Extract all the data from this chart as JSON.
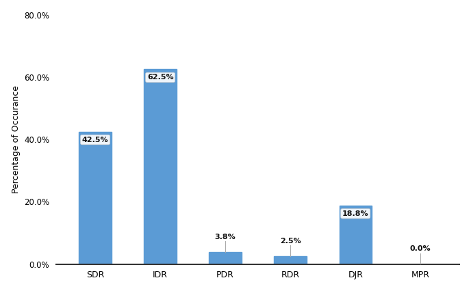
{
  "categories": [
    "SDR",
    "IDR",
    "PDR",
    "RDR",
    "DJR",
    "MPR"
  ],
  "values": [
    42.5,
    62.5,
    3.8,
    2.5,
    18.8,
    0.0
  ],
  "labels": [
    "42.5%",
    "62.5%",
    "3.8%",
    "2.5%",
    "18.8%",
    "0.0%"
  ],
  "bar_color": "#5b9bd5",
  "ylabel": "Percentage of Occurance",
  "ylim": [
    0,
    80
  ],
  "yticks": [
    0.0,
    20.0,
    40.0,
    60.0,
    80.0
  ],
  "ytick_labels": [
    "0.0%",
    "20.0%",
    "40.0%",
    "60.0%",
    "80.0%"
  ],
  "background_color": "#ffffff",
  "label_fontsize": 8,
  "ylabel_fontsize": 9,
  "xlabel_fontsize": 9,
  "bar_width": 0.5,
  "label_color": "#111111",
  "label_bg_color": "white",
  "large_bar_indices": [
    0,
    1,
    4
  ],
  "small_bar_indices": [
    2,
    3,
    5
  ],
  "line_extend": 3.5
}
